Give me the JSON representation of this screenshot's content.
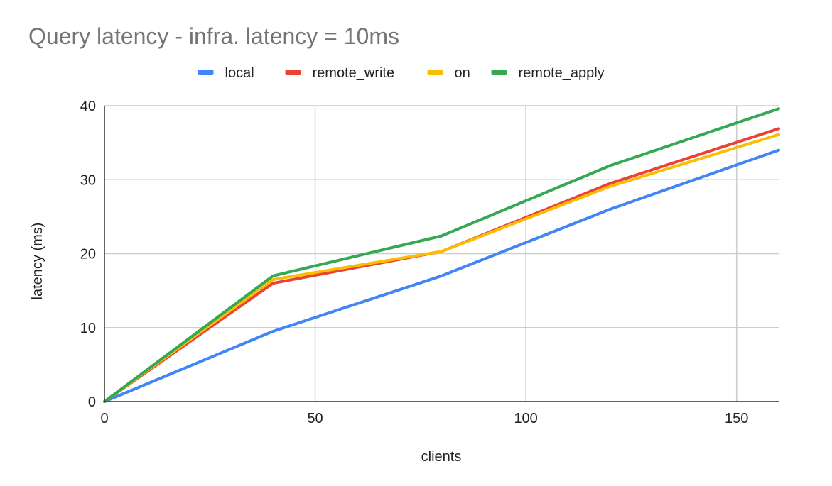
{
  "chart_data": {
    "type": "line",
    "title": "Query latency - infra. latency = 10ms",
    "xlabel": "clients",
    "ylabel": "latency (ms)",
    "xlim": [
      0,
      160
    ],
    "ylim": [
      0,
      40
    ],
    "x_ticks": [
      0,
      50,
      100,
      150
    ],
    "y_ticks": [
      0,
      10,
      20,
      30,
      40
    ],
    "grid": true,
    "legend_position": "top",
    "x": [
      0,
      40,
      80,
      120,
      160
    ],
    "series": [
      {
        "name": "local",
        "color": "#4285F4",
        "values": [
          0,
          9.5,
          17.0,
          26.0,
          34.0
        ]
      },
      {
        "name": "remote_write",
        "color": "#EA4335",
        "values": [
          0,
          16.0,
          20.3,
          29.5,
          36.9
        ]
      },
      {
        "name": "on",
        "color": "#FBBC04",
        "values": [
          0,
          16.5,
          20.3,
          29.1,
          36.1
        ]
      },
      {
        "name": "remote_apply",
        "color": "#34A853",
        "values": [
          0,
          17.0,
          22.4,
          31.9,
          39.6
        ]
      }
    ]
  }
}
